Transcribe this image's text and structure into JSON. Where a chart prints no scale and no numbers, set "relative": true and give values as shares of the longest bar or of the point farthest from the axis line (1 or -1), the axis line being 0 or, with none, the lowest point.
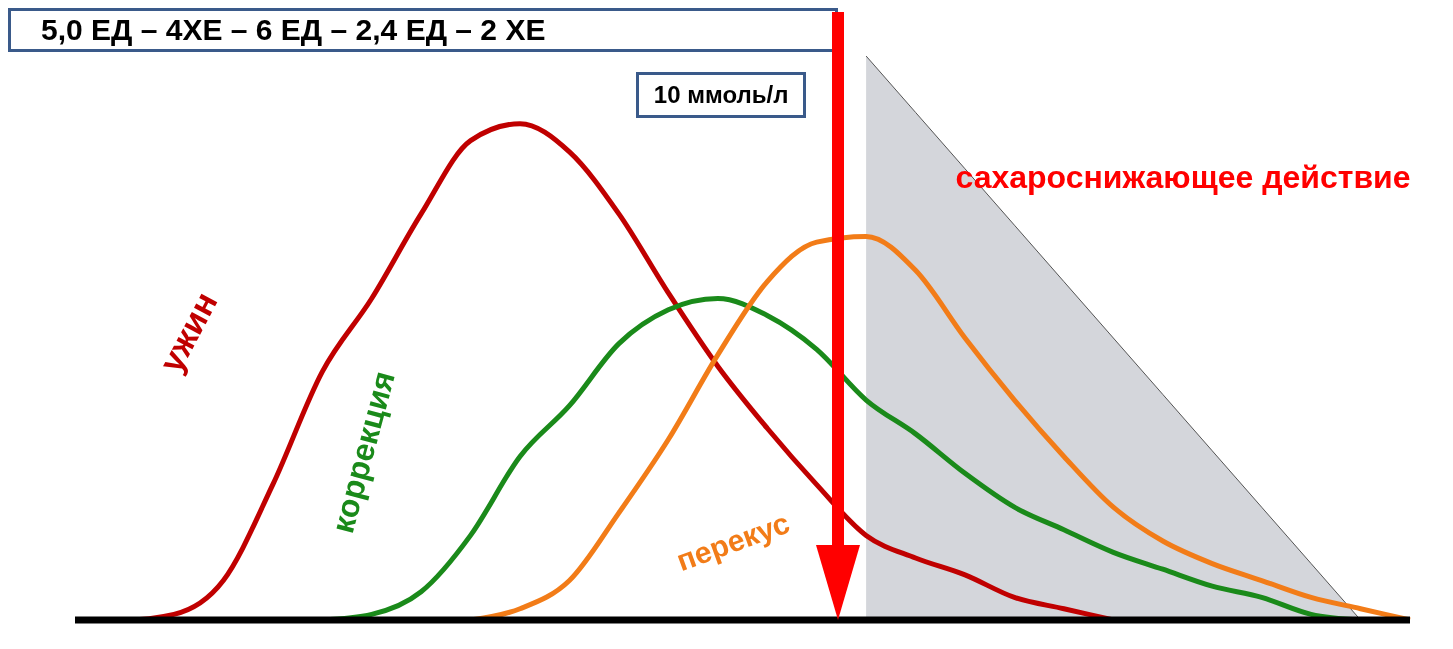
{
  "chart_data": {
    "type": "line",
    "title": "5,0 ЕД – 4ХЕ – 6 ЕД – 2,4 ЕД – 2 ХЕ",
    "relative": true,
    "legend": false,
    "grid": false,
    "categories": [
      null,
      null,
      null,
      null,
      null,
      null,
      null,
      null,
      null,
      null,
      null,
      null,
      null,
      null,
      null,
      null,
      null,
      null,
      null,
      null,
      null,
      null,
      null,
      null,
      null,
      null,
      null,
      null
    ],
    "series": [
      {
        "name": "сахароснижающее действие",
        "type": "area",
        "color": "#d4d6db",
        "values": [
          null,
          null,
          null,
          null,
          null,
          null,
          null,
          null,
          null,
          null,
          null,
          null,
          null,
          null,
          null,
          null,
          1,
          0.9,
          0.8,
          0.7,
          0.6,
          0.5,
          0.4,
          0.3,
          0.2,
          0.1,
          0,
          null
        ]
      },
      {
        "name": "ужин",
        "color": "#c00000",
        "values": [
          0,
          0,
          0.01,
          0.07,
          0.24,
          0.44,
          0.57,
          0.72,
          0.85,
          0.88,
          0.83,
          0.72,
          0.58,
          0.45,
          0.34,
          0.24,
          0.15,
          0.11,
          0.08,
          0.04,
          0.02,
          0,
          null,
          null,
          null,
          null,
          null,
          null
        ]
      },
      {
        "name": "коррекция",
        "color": "#1a8a1a",
        "values": [
          null,
          null,
          null,
          null,
          null,
          0,
          0.01,
          0.05,
          0.15,
          0.29,
          0.38,
          0.49,
          0.55,
          0.57,
          0.54,
          0.48,
          0.39,
          0.33,
          0.26,
          0.2,
          0.16,
          0.12,
          0.09,
          0.06,
          0.04,
          0.01,
          0,
          null
        ]
      },
      {
        "name": "перекус",
        "color": "#f27c18",
        "values": [
          null,
          null,
          null,
          null,
          null,
          null,
          null,
          null,
          0,
          0.02,
          0.07,
          0.19,
          0.32,
          0.47,
          0.6,
          0.67,
          0.68,
          0.62,
          0.5,
          0.39,
          0.29,
          0.2,
          0.14,
          0.1,
          0.07,
          0.04,
          0.02,
          0
        ]
      }
    ],
    "annotations": [
      "10 ммоль/л"
    ]
  }
}
